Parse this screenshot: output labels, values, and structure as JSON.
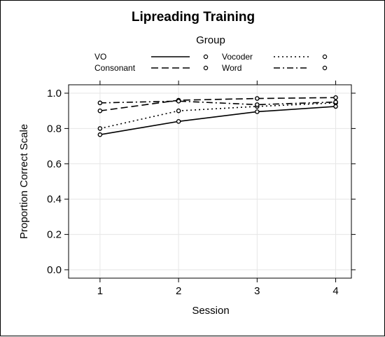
{
  "chart_data": {
    "type": "line",
    "title": "Lipreading Training",
    "xlabel": "Session",
    "ylabel": "Proportion Correct Scale",
    "x": [
      1,
      2,
      3,
      4
    ],
    "xlim": [
      0.6,
      4.2
    ],
    "ylim": [
      0.0,
      1.0
    ],
    "yticks": [
      "0.0",
      "0.2",
      "0.4",
      "0.6",
      "0.8",
      "1.0"
    ],
    "xticks": [
      "1",
      "2",
      "3",
      "4"
    ],
    "grid": true,
    "legend": {
      "title": "Group",
      "placement": "top",
      "entries": [
        "VO",
        "Vocoder",
        "Consonant",
        "Word"
      ]
    },
    "series": [
      {
        "name": "VO",
        "line_style": "solid",
        "values": [
          0.765,
          0.84,
          0.895,
          0.925
        ]
      },
      {
        "name": "Vocoder",
        "line_style": "dotted",
        "values": [
          0.8,
          0.9,
          0.925,
          0.945
        ]
      },
      {
        "name": "Consonant",
        "line_style": "dashed",
        "values": [
          0.9,
          0.96,
          0.97,
          0.975
        ]
      },
      {
        "name": "Word",
        "line_style": "dotdash",
        "values": [
          0.945,
          0.955,
          0.935,
          0.95
        ]
      }
    ],
    "colors": {
      "lines": "#000000",
      "grid": "#e6e6e6",
      "panel_border": "#000000"
    }
  }
}
